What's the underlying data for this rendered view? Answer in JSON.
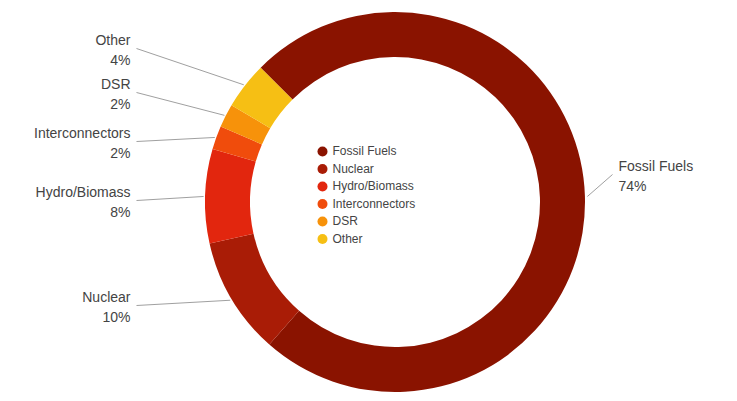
{
  "chart_data": {
    "type": "pie",
    "categories": [
      "Fossil Fuels",
      "Nuclear",
      "Hydro/Biomass",
      "Interconnectors",
      "DSR",
      "Other"
    ],
    "values": [
      74,
      10,
      8,
      2,
      2,
      4
    ],
    "value_labels": [
      "74%",
      "10%",
      "8%",
      "2%",
      "2%",
      "4%"
    ],
    "colors": [
      "#8a1300",
      "#a91c06",
      "#e2260e",
      "#f04c0c",
      "#f7920a",
      "#f6bf14"
    ],
    "data_labels": true,
    "legend": "center"
  }
}
